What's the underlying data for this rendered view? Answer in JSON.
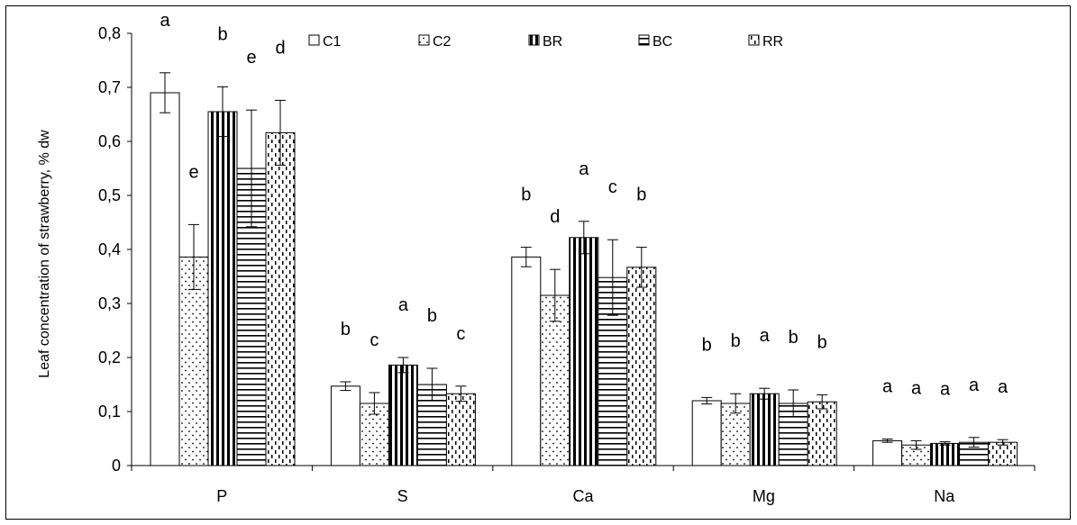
{
  "chart_data": {
    "type": "bar",
    "title": "",
    "xlabel": "",
    "ylabel": "Leaf concentration of strawberry, % dw",
    "ylim": [
      0,
      0.8
    ],
    "yticks": [
      "0",
      "0,1",
      "0,2",
      "0,3",
      "0,4",
      "0,5",
      "0,6",
      "0,7",
      "0,8"
    ],
    "categories": [
      "P",
      "S",
      "Ca",
      "Mg",
      "Na"
    ],
    "legend_position": "top",
    "grid": false,
    "series": [
      {
        "name": "C1",
        "pattern": "white",
        "values": [
          0.69,
          0.147,
          0.386,
          0.12,
          0.046
        ],
        "errors": [
          0.037,
          0.008,
          0.018,
          0.006,
          0.003
        ],
        "labels": [
          "a",
          "b",
          "b",
          "b",
          "a"
        ]
      },
      {
        "name": "C2",
        "pattern": "dots",
        "values": [
          0.386,
          0.115,
          0.315,
          0.115,
          0.038
        ],
        "errors": [
          0.06,
          0.02,
          0.048,
          0.018,
          0.008
        ],
        "labels": [
          "e",
          "c",
          "d",
          "b",
          "a"
        ]
      },
      {
        "name": "BR",
        "pattern": "vertical",
        "values": [
          0.655,
          0.186,
          0.422,
          0.133,
          0.041
        ],
        "errors": [
          0.046,
          0.014,
          0.03,
          0.01,
          0.003
        ],
        "labels": [
          "b",
          "a",
          "a",
          "a",
          "a"
        ]
      },
      {
        "name": "BC",
        "pattern": "horizontal",
        "values": [
          0.55,
          0.15,
          0.348,
          0.115,
          0.043
        ],
        "errors": [
          0.108,
          0.03,
          0.07,
          0.025,
          0.009
        ],
        "labels": [
          "e",
          "b",
          "c",
          "b",
          "a"
        ]
      },
      {
        "name": "RR",
        "pattern": "dashes",
        "values": [
          0.616,
          0.133,
          0.367,
          0.118,
          0.043
        ],
        "errors": [
          0.06,
          0.014,
          0.037,
          0.013,
          0.005
        ],
        "labels": [
          "d",
          "c",
          "b",
          "b",
          "a"
        ]
      }
    ]
  }
}
